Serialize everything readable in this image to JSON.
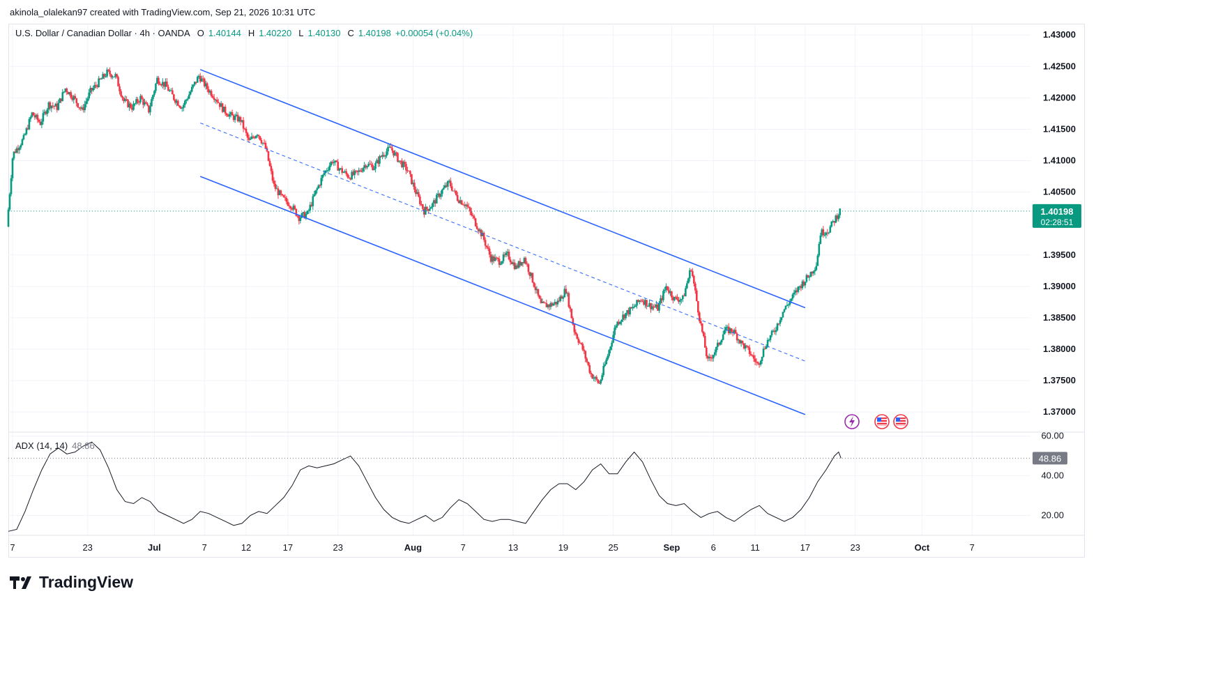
{
  "caption": "akinola_olalekan97 created with TradingView.com, Sep 21, 2026 10:31 UTC",
  "legend": {
    "symbol": "U.S. Dollar / Canadian Dollar · 4h · OANDA",
    "open_label": "O",
    "open": "1.40144",
    "high_label": "H",
    "high": "1.40220",
    "low_label": "L",
    "low": "1.40130",
    "close_label": "C",
    "close": "1.40198",
    "change": "+0.00054 (+0.04%)"
  },
  "price_badge": {
    "price": "1.40198",
    "countdown": "02:28:51"
  },
  "adx": {
    "label": "ADX (14, 14)",
    "value": "48.86"
  },
  "brand": "TradingView",
  "colors": {
    "up": "#089981",
    "down": "#f23645",
    "channel": "#2962ff",
    "adx": "#131722",
    "badge": "#089981"
  },
  "chart_data": {
    "type": "candlestick",
    "price_axis": [
      "1.43000",
      "1.42500",
      "1.42000",
      "1.41500",
      "1.41000",
      "1.40500",
      "1.39500",
      "1.39000",
      "1.38500",
      "1.38000",
      "1.37500",
      "1.37000"
    ],
    "ylim": [
      1.3668,
      1.4318
    ],
    "adx_axis": [
      "60.00",
      "40.00",
      "20.00"
    ],
    "adx_ylim": [
      10,
      62
    ],
    "x_ticks": [
      "7",
      "23",
      "Jul",
      "7",
      "12",
      "17",
      "23",
      "Aug",
      "7",
      "13",
      "19",
      "25",
      "Sep",
      "6",
      "11",
      "17",
      "23",
      "Oct",
      "7"
    ],
    "x_tick_days": [
      -17,
      -8,
      0,
      6,
      11,
      16,
      22,
      31,
      37,
      43,
      49,
      55,
      62,
      67,
      72,
      78,
      84,
      92,
      98
    ],
    "x_range_days": [
      -17.5,
      105
    ],
    "last_day": 82.3,
    "price_path": [
      [
        -17.5,
        1.3995
      ],
      [
        -16.8,
        1.411
      ],
      [
        -15.5,
        1.4135
      ],
      [
        -14.5,
        1.4175
      ],
      [
        -13.5,
        1.416
      ],
      [
        -12.5,
        1.419
      ],
      [
        -11.5,
        1.4185
      ],
      [
        -10.5,
        1.4215
      ],
      [
        -9.5,
        1.42
      ],
      [
        -8.5,
        1.418
      ],
      [
        -7.5,
        1.421
      ],
      [
        -6.5,
        1.4225
      ],
      [
        -5.5,
        1.424
      ],
      [
        -4.5,
        1.4235
      ],
      [
        -3.5,
        1.4195
      ],
      [
        -2.5,
        1.4185
      ],
      [
        -1.5,
        1.42
      ],
      [
        -0.5,
        1.418
      ],
      [
        0.5,
        1.423
      ],
      [
        1.5,
        1.422
      ],
      [
        2.5,
        1.42
      ],
      [
        3.5,
        1.4185
      ],
      [
        4.5,
        1.421
      ],
      [
        5.5,
        1.4235
      ],
      [
        6.5,
        1.4215
      ],
      [
        7.5,
        1.42
      ],
      [
        8.5,
        1.418
      ],
      [
        9.5,
        1.417
      ],
      [
        10.5,
        1.4165
      ],
      [
        11.5,
        1.413
      ],
      [
        12.5,
        1.4145
      ],
      [
        13.5,
        1.412
      ],
      [
        14.5,
        1.406
      ],
      [
        15.5,
        1.404
      ],
      [
        16.5,
        1.403
      ],
      [
        17.5,
        1.401
      ],
      [
        18.5,
        1.4015
      ],
      [
        19.5,
        1.405
      ],
      [
        20.5,
        1.408
      ],
      [
        21.5,
        1.41
      ],
      [
        22.5,
        1.4085
      ],
      [
        23.5,
        1.4075
      ],
      [
        24.5,
        1.408
      ],
      [
        25.5,
        1.4095
      ],
      [
        26.5,
        1.409
      ],
      [
        27.5,
        1.411
      ],
      [
        28.5,
        1.412
      ],
      [
        29.5,
        1.41
      ],
      [
        30.5,
        1.4085
      ],
      [
        31.5,
        1.405
      ],
      [
        32.5,
        1.402
      ],
      [
        33.5,
        1.403
      ],
      [
        34.5,
        1.405
      ],
      [
        35.5,
        1.4065
      ],
      [
        36.5,
        1.404
      ],
      [
        37.5,
        1.403
      ],
      [
        38.5,
        1.4005
      ],
      [
        39.5,
        1.398
      ],
      [
        40.5,
        1.3945
      ],
      [
        41.5,
        1.394
      ],
      [
        42.5,
        1.395
      ],
      [
        43.5,
        1.393
      ],
      [
        44.5,
        1.3945
      ],
      [
        45.5,
        1.391
      ],
      [
        46.5,
        1.387
      ],
      [
        47.5,
        1.387
      ],
      [
        48.5,
        1.3875
      ],
      [
        49.5,
        1.3895
      ],
      [
        50.5,
        1.383
      ],
      [
        51.5,
        1.38
      ],
      [
        52.5,
        1.376
      ],
      [
        53.5,
        1.3745
      ],
      [
        54.5,
        1.379
      ],
      [
        55.5,
        1.384
      ],
      [
        56.5,
        1.3855
      ],
      [
        57.5,
        1.3865
      ],
      [
        58.5,
        1.388
      ],
      [
        59.5,
        1.387
      ],
      [
        60.5,
        1.3865
      ],
      [
        61.5,
        1.39
      ],
      [
        62.5,
        1.388
      ],
      [
        63.5,
        1.388
      ],
      [
        64.5,
        1.393
      ],
      [
        65.5,
        1.385
      ],
      [
        66.5,
        1.378
      ],
      [
        67.5,
        1.38
      ],
      [
        68.5,
        1.383
      ],
      [
        69.5,
        1.383
      ],
      [
        70.5,
        1.381
      ],
      [
        71.5,
        1.3795
      ],
      [
        72.5,
        1.3775
      ],
      [
        73.5,
        1.381
      ],
      [
        74.5,
        1.383
      ],
      [
        75.5,
        1.386
      ],
      [
        76.5,
        1.388
      ],
      [
        77.5,
        1.39
      ],
      [
        78.5,
        1.3915
      ],
      [
        79.5,
        1.3935
      ],
      [
        80.0,
        1.3985
      ],
      [
        81.0,
        1.399
      ],
      [
        82.3,
        1.40198
      ]
    ],
    "channel": {
      "upper": [
        [
          5.5,
          1.4245
        ],
        [
          78,
          1.3866
        ]
      ],
      "middle": [
        [
          5.5,
          1.416
        ],
        [
          78,
          1.3781
        ]
      ],
      "lower": [
        [
          5.5,
          1.4075
        ],
        [
          78,
          1.3696
        ]
      ]
    },
    "adx_path": [
      [
        -17.5,
        12
      ],
      [
        -16.5,
        13
      ],
      [
        -15.5,
        22
      ],
      [
        -14.5,
        33
      ],
      [
        -13.5,
        43
      ],
      [
        -12.5,
        51
      ],
      [
        -11.5,
        54
      ],
      [
        -10.5,
        51
      ],
      [
        -9.5,
        52
      ],
      [
        -8.5,
        55
      ],
      [
        -7.5,
        57
      ],
      [
        -6.5,
        53
      ],
      [
        -5.5,
        44
      ],
      [
        -4.5,
        33
      ],
      [
        -3.5,
        27
      ],
      [
        -2.5,
        26
      ],
      [
        -1.5,
        29
      ],
      [
        -0.5,
        27
      ],
      [
        0.5,
        22
      ],
      [
        1.5,
        20
      ],
      [
        2.5,
        18
      ],
      [
        3.5,
        16
      ],
      [
        4.5,
        18
      ],
      [
        5.5,
        22
      ],
      [
        6.5,
        21
      ],
      [
        7.5,
        19
      ],
      [
        8.5,
        17
      ],
      [
        9.5,
        15
      ],
      [
        10.5,
        16
      ],
      [
        11.5,
        20
      ],
      [
        12.5,
        22
      ],
      [
        13.5,
        21
      ],
      [
        14.5,
        25
      ],
      [
        15.5,
        29
      ],
      [
        16.5,
        35
      ],
      [
        17.5,
        43
      ],
      [
        18.5,
        45
      ],
      [
        19.5,
        44
      ],
      [
        20.5,
        45
      ],
      [
        21.5,
        46
      ],
      [
        22.5,
        48
      ],
      [
        23.5,
        50
      ],
      [
        24.5,
        45
      ],
      [
        25.5,
        37
      ],
      [
        26.5,
        29
      ],
      [
        27.5,
        23
      ],
      [
        28.5,
        19
      ],
      [
        29.5,
        17
      ],
      [
        30.5,
        16
      ],
      [
        31.5,
        18
      ],
      [
        32.5,
        20
      ],
      [
        33.5,
        17
      ],
      [
        34.5,
        19
      ],
      [
        35.5,
        24
      ],
      [
        36.5,
        28
      ],
      [
        37.5,
        26
      ],
      [
        38.5,
        22
      ],
      [
        39.5,
        18
      ],
      [
        40.5,
        17
      ],
      [
        41.5,
        18
      ],
      [
        42.5,
        18
      ],
      [
        43.5,
        17
      ],
      [
        44.5,
        16
      ],
      [
        45.5,
        22
      ],
      [
        46.5,
        28
      ],
      [
        47.5,
        33
      ],
      [
        48.5,
        36
      ],
      [
        49.5,
        36
      ],
      [
        50.5,
        33
      ],
      [
        51.5,
        37
      ],
      [
        52.5,
        43
      ],
      [
        53.5,
        46
      ],
      [
        54.5,
        41
      ],
      [
        55.5,
        41
      ],
      [
        56.5,
        47
      ],
      [
        57.5,
        52
      ],
      [
        58.5,
        47
      ],
      [
        59.5,
        38
      ],
      [
        60.5,
        30
      ],
      [
        61.5,
        26
      ],
      [
        62.5,
        25
      ],
      [
        63.5,
        26
      ],
      [
        64.5,
        22
      ],
      [
        65.5,
        19
      ],
      [
        66.5,
        21
      ],
      [
        67.5,
        22
      ],
      [
        68.5,
        19
      ],
      [
        69.5,
        17
      ],
      [
        70.5,
        20
      ],
      [
        71.5,
        23
      ],
      [
        72.5,
        25
      ],
      [
        73.5,
        21
      ],
      [
        74.5,
        19
      ],
      [
        75.5,
        17
      ],
      [
        76.5,
        19
      ],
      [
        77.5,
        23
      ],
      [
        78.5,
        29
      ],
      [
        79.5,
        37
      ],
      [
        80.5,
        43
      ],
      [
        81.5,
        50
      ],
      [
        82.0,
        52
      ],
      [
        82.3,
        48.86
      ]
    ]
  }
}
